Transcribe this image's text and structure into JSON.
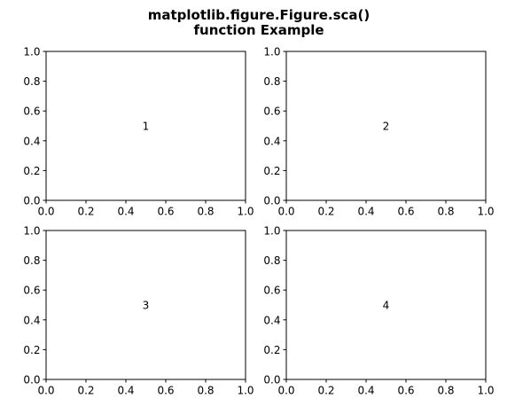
{
  "figure": {
    "title_lines": [
      "matplotlib.figure.Figure.sca()",
      "function Example"
    ]
  },
  "chart_data": [
    {
      "type": "scatter",
      "label": "1",
      "label_position": [
        0.5,
        0.5
      ],
      "xlim": [
        0.0,
        1.0
      ],
      "ylim": [
        0.0,
        1.0
      ],
      "xticks": [
        "0.0",
        "0.2",
        "0.4",
        "0.6",
        "0.8",
        "1.0"
      ],
      "yticks": [
        "0.0",
        "0.2",
        "0.4",
        "0.6",
        "0.8",
        "1.0"
      ],
      "grid": false
    },
    {
      "type": "scatter",
      "label": "2",
      "label_position": [
        0.5,
        0.5
      ],
      "xlim": [
        0.0,
        1.0
      ],
      "ylim": [
        0.0,
        1.0
      ],
      "xticks": [
        "0.0",
        "0.2",
        "0.4",
        "0.6",
        "0.8",
        "1.0"
      ],
      "yticks": [
        "0.0",
        "0.2",
        "0.4",
        "0.6",
        "0.8",
        "1.0"
      ],
      "grid": false
    },
    {
      "type": "scatter",
      "label": "3",
      "label_position": [
        0.5,
        0.5
      ],
      "xlim": [
        0.0,
        1.0
      ],
      "ylim": [
        0.0,
        1.0
      ],
      "xticks": [
        "0.0",
        "0.2",
        "0.4",
        "0.6",
        "0.8",
        "1.0"
      ],
      "yticks": [
        "0.0",
        "0.2",
        "0.4",
        "0.6",
        "0.8",
        "1.0"
      ],
      "grid": false
    },
    {
      "type": "scatter",
      "label": "4",
      "label_position": [
        0.5,
        0.5
      ],
      "xlim": [
        0.0,
        1.0
      ],
      "ylim": [
        0.0,
        1.0
      ],
      "xticks": [
        "0.0",
        "0.2",
        "0.4",
        "0.6",
        "0.8",
        "1.0"
      ],
      "yticks": [
        "0.0",
        "0.2",
        "0.4",
        "0.6",
        "0.8",
        "1.0"
      ],
      "grid": false
    }
  ]
}
